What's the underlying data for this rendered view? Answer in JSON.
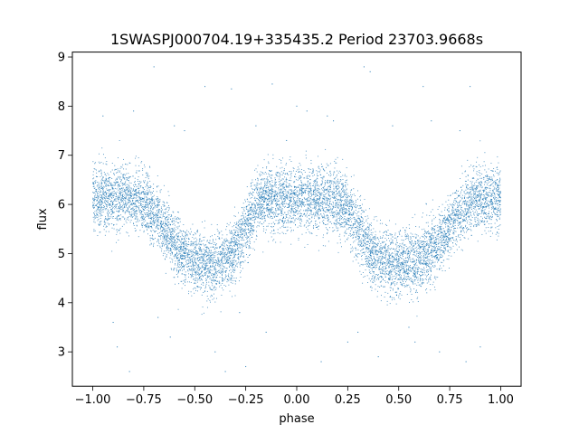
{
  "chart_data": {
    "type": "scatter",
    "title": "1SWASPJ000704.19+335435.2 Period 23703.9668s",
    "xlabel": "phase",
    "ylabel": "flux",
    "xlim": [
      -1.1,
      1.1
    ],
    "ylim": [
      2.3,
      9.1
    ],
    "xticks": [
      -1.0,
      -0.75,
      -0.5,
      -0.25,
      0.0,
      0.25,
      0.5,
      0.75,
      1.0
    ],
    "xtick_labels": [
      "−1.00",
      "−0.75",
      "−0.50",
      "−0.25",
      "0.00",
      "0.25",
      "0.50",
      "0.75",
      "1.00"
    ],
    "yticks": [
      3,
      4,
      5,
      6,
      7,
      8,
      9
    ],
    "ytick_labels": [
      "3",
      "4",
      "5",
      "6",
      "7",
      "8",
      "9"
    ],
    "grid": false,
    "marker_color": "#1f77b4",
    "series": [
      {
        "x": [
          -1.0,
          -0.98,
          -0.96,
          -0.93,
          -0.9,
          -0.87,
          -0.85,
          -0.82,
          -0.8,
          -0.77,
          -0.75,
          -0.72,
          -0.7,
          -0.67,
          -0.65,
          -0.62,
          -0.6,
          -0.57,
          -0.55,
          -0.52,
          -0.5,
          -0.47,
          -0.45,
          -0.42,
          -0.4,
          -0.37,
          -0.35,
          -0.32,
          -0.3,
          -0.27,
          -0.25,
          -0.22,
          -0.2,
          -0.17,
          -0.15,
          -0.12,
          -0.1,
          -0.07,
          -0.05,
          -0.02,
          0.0,
          0.02,
          0.05,
          0.07,
          0.1,
          0.12,
          0.15,
          0.17,
          0.2,
          0.22,
          0.25,
          0.27,
          0.3,
          0.32,
          0.35,
          0.37,
          0.4,
          0.42,
          0.45,
          0.47,
          0.5,
          0.52,
          0.55,
          0.57,
          0.6,
          0.62,
          0.65,
          0.67,
          0.7,
          0.72,
          0.75,
          0.77,
          0.8,
          0.82,
          0.85,
          0.87,
          0.9,
          0.92,
          0.95,
          0.97,
          1.0
        ],
        "y": [
          6.15,
          6.1,
          6.18,
          6.12,
          6.08,
          6.14,
          6.2,
          6.1,
          6.05,
          6.12,
          6.0,
          5.92,
          5.8,
          5.65,
          5.5,
          5.35,
          5.2,
          5.05,
          4.95,
          4.88,
          4.85,
          4.82,
          4.8,
          4.78,
          4.8,
          4.85,
          4.9,
          5.0,
          5.15,
          5.35,
          5.55,
          5.75,
          5.92,
          6.05,
          6.12,
          6.15,
          6.12,
          6.1,
          6.15,
          6.12,
          6.1,
          6.14,
          6.12,
          6.15,
          6.1,
          6.12,
          6.08,
          6.1,
          6.05,
          6.0,
          5.9,
          5.75,
          5.55,
          5.35,
          5.15,
          5.0,
          4.9,
          4.85,
          4.82,
          4.8,
          4.78,
          4.8,
          4.82,
          4.85,
          4.88,
          4.92,
          5.0,
          5.1,
          5.25,
          5.4,
          5.55,
          5.7,
          5.82,
          5.92,
          6.0,
          6.05,
          6.1,
          6.12,
          6.15,
          6.12,
          6.15
        ]
      }
    ],
    "outliers": {
      "x": [
        -0.95,
        -0.88,
        -0.8,
        -0.7,
        -0.62,
        -0.55,
        -0.45,
        -0.4,
        -0.32,
        -0.25,
        -0.2,
        -0.15,
        -0.05,
        0.05,
        0.12,
        0.18,
        0.25,
        0.33,
        0.4,
        0.47,
        0.55,
        0.62,
        0.7,
        0.8,
        0.85,
        0.9,
        -0.9,
        -0.82,
        -0.68,
        -0.35,
        -0.28,
        0.0,
        0.3,
        0.36,
        0.66,
        0.83,
        -0.6,
        0.15,
        0.58,
        -0.12
      ],
      "y": [
        7.8,
        3.1,
        7.9,
        8.8,
        3.3,
        7.5,
        8.4,
        3.0,
        8.35,
        2.7,
        7.6,
        3.4,
        7.3,
        7.9,
        2.8,
        7.7,
        3.2,
        8.8,
        2.9,
        7.6,
        3.5,
        8.4,
        3.0,
        7.5,
        8.4,
        3.1,
        3.6,
        2.6,
        3.7,
        2.6,
        3.8,
        8.0,
        3.4,
        8.7,
        7.7,
        2.8,
        7.6,
        7.8,
        3.2,
        8.45
      ]
    }
  }
}
